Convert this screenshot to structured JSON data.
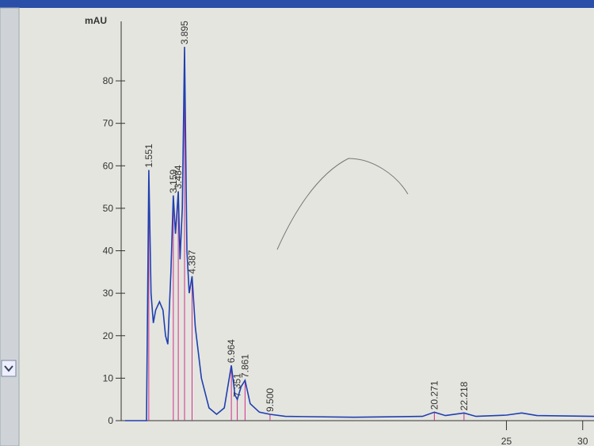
{
  "chart_data": {
    "type": "line",
    "y_label": "mAU",
    "x": [
      0,
      1.4,
      1.551,
      1.7,
      1.85,
      2.0,
      2.256,
      2.484,
      2.65,
      2.8,
      3.0,
      3.159,
      3.3,
      3.484,
      3.6,
      3.75,
      3.895,
      4.05,
      4.2,
      4.387,
      4.6,
      5.0,
      5.5,
      6.0,
      6.5,
      6.964,
      7.2,
      7.351,
      7.6,
      7.861,
      8.2,
      8.8,
      9.5,
      10.5,
      15,
      19.5,
      20.271,
      21,
      22.218,
      23,
      25,
      26,
      27,
      31
    ],
    "series": [
      {
        "color": "#1f3fb0",
        "values": [
          0,
          0,
          59,
          30,
          23,
          26,
          28,
          26,
          20,
          18,
          35,
          53,
          44,
          54,
          38,
          50,
          88,
          40,
          30,
          34,
          22,
          10,
          3,
          1.5,
          3,
          13,
          6,
          5,
          8,
          9.5,
          4,
          2,
          1.5,
          1,
          0.8,
          1,
          2,
          1.2,
          1.8,
          1,
          1.3,
          1.8,
          1.2,
          1
        ]
      }
    ],
    "peaks": [
      {
        "x": 1.551,
        "y": 59,
        "label": "1.551"
      },
      {
        "x": 3.159,
        "y": 53,
        "label": "3.159"
      },
      {
        "x": 3.484,
        "y": 54,
        "label": "3.484"
      },
      {
        "x": 3.895,
        "y": 88,
        "label": "3.895"
      },
      {
        "x": 4.387,
        "y": 34,
        "label": "4.387"
      },
      {
        "x": 6.964,
        "y": 13,
        "label": "6.964"
      },
      {
        "x": 7.351,
        "y": 5,
        "label": "7.351"
      },
      {
        "x": 7.861,
        "y": 9.5,
        "label": "7.861"
      },
      {
        "x": 9.5,
        "y": 1.5,
        "label": "9.500"
      },
      {
        "x": 20.271,
        "y": 2,
        "label": "20.271"
      },
      {
        "x": 22.218,
        "y": 1.8,
        "label": "22.218"
      }
    ],
    "peak_color": "#d0308a",
    "xlim": [
      0,
      31
    ],
    "xticks": [
      25,
      30
    ],
    "ylim": [
      0,
      94
    ],
    "yticks": [
      0,
      10,
      20,
      30,
      40,
      50,
      60,
      70,
      80
    ]
  }
}
